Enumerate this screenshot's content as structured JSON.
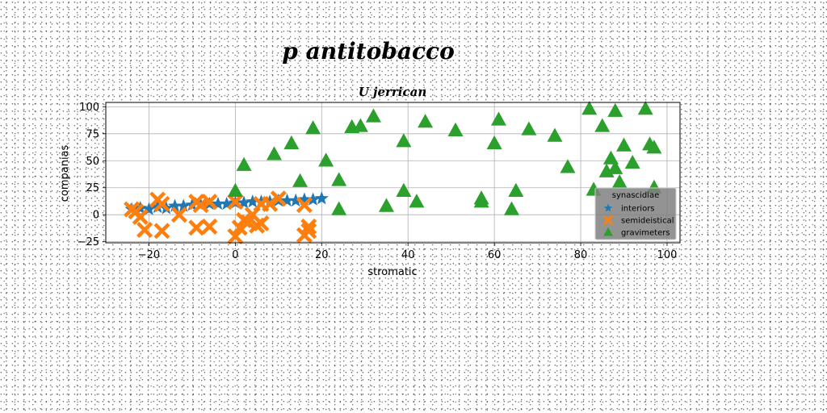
{
  "chart_data": {
    "type": "scatter",
    "title": "p antitobacco",
    "subtitle": "U jerrican",
    "xlabel": "stromatic",
    "ylabel": "companias",
    "xlim": [
      -30,
      103
    ],
    "ylim": [
      -26,
      104
    ],
    "xticks": [
      -20,
      0,
      20,
      40,
      60,
      80,
      100
    ],
    "yticks": [
      -25,
      0,
      25,
      50,
      75,
      100
    ],
    "grid": true,
    "legend": {
      "title": "synascidiae",
      "position": "lower-right"
    },
    "series": [
      {
        "name": "interiors",
        "marker": "star",
        "color": "#1f77b4",
        "points": [
          [
            -24,
            5
          ],
          [
            -22,
            6
          ],
          [
            -20,
            5
          ],
          [
            -18,
            7
          ],
          [
            -16,
            6
          ],
          [
            -14,
            8
          ],
          [
            -12,
            8
          ],
          [
            -10,
            9
          ],
          [
            -8,
            9
          ],
          [
            -6,
            10
          ],
          [
            -4,
            10
          ],
          [
            -2,
            10
          ],
          [
            0,
            11
          ],
          [
            2,
            11
          ],
          [
            4,
            12
          ],
          [
            6,
            12
          ],
          [
            8,
            12
          ],
          [
            10,
            13
          ],
          [
            12,
            13
          ],
          [
            14,
            13
          ],
          [
            16,
            14
          ],
          [
            18,
            14
          ],
          [
            20,
            15
          ]
        ]
      },
      {
        "name": "semideistical",
        "marker": "x",
        "color": "#ff7f0e",
        "points": [
          [
            -24,
            5
          ],
          [
            -23,
            3
          ],
          [
            -22,
            -2
          ],
          [
            -21,
            -14
          ],
          [
            -18,
            14
          ],
          [
            -17,
            10
          ],
          [
            -17,
            -15
          ],
          [
            -13,
            0
          ],
          [
            -9,
            12
          ],
          [
            -9,
            -12
          ],
          [
            -8,
            9
          ],
          [
            -6,
            12
          ],
          [
            -6,
            -11
          ],
          [
            0,
            12
          ],
          [
            0,
            -20
          ],
          [
            1,
            -12
          ],
          [
            2,
            -5
          ],
          [
            3,
            -7
          ],
          [
            4,
            0
          ],
          [
            5,
            -10
          ],
          [
            6,
            10
          ],
          [
            6,
            -8
          ],
          [
            8,
            10
          ],
          [
            10,
            15
          ],
          [
            16,
            9
          ],
          [
            16,
            -19
          ],
          [
            17,
            -15
          ],
          [
            17,
            -11
          ]
        ]
      },
      {
        "name": "gravimeters",
        "marker": "triangle",
        "color": "#2ca02c",
        "points": [
          [
            0,
            22
          ],
          [
            2,
            46
          ],
          [
            9,
            56
          ],
          [
            13,
            66
          ],
          [
            15,
            31
          ],
          [
            18,
            80
          ],
          [
            21,
            50
          ],
          [
            24,
            32
          ],
          [
            24,
            5
          ],
          [
            27,
            81
          ],
          [
            29,
            82
          ],
          [
            32,
            91
          ],
          [
            35,
            8
          ],
          [
            39,
            68
          ],
          [
            39,
            22
          ],
          [
            42,
            12
          ],
          [
            44,
            86
          ],
          [
            51,
            78
          ],
          [
            57,
            12
          ],
          [
            57,
            15
          ],
          [
            60,
            66
          ],
          [
            61,
            88
          ],
          [
            64,
            5
          ],
          [
            65,
            22
          ],
          [
            68,
            79
          ],
          [
            74,
            73
          ],
          [
            77,
            44
          ],
          [
            82,
            98
          ],
          [
            83,
            23
          ],
          [
            85,
            82
          ],
          [
            86,
            40
          ],
          [
            87,
            52
          ],
          [
            88,
            43
          ],
          [
            88,
            96
          ],
          [
            89,
            30
          ],
          [
            90,
            64
          ],
          [
            92,
            48
          ],
          [
            95,
            98
          ],
          [
            96,
            65
          ],
          [
            97,
            62
          ],
          [
            97,
            25
          ]
        ]
      }
    ]
  }
}
